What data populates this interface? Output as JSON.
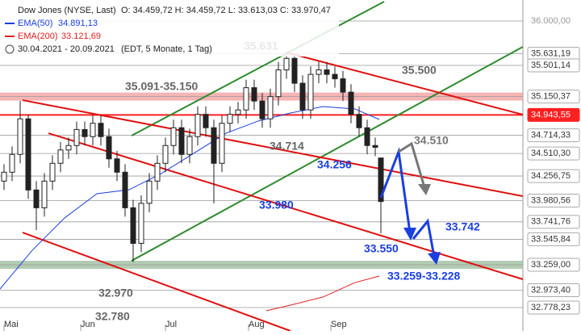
{
  "chart_data": {
    "type": "candlestick",
    "title": "Dow Jones (NYSE, Last)",
    "ohlc_text": "O: 34.459,72  H: 34.459,72  L: 33.613,03  C: 33.970,47",
    "period": "30.04.2021 - 20.09.2021",
    "period_note": "(EDT, 5 Monate, 1 Tag)",
    "up_color": "#ffffff",
    "down_color": "#222222",
    "xlim": [
      0,
      648
    ],
    "xticks": [
      {
        "value": 5,
        "label": "Mai"
      },
      {
        "value": 100,
        "label": "Jun"
      },
      {
        "value": 205,
        "label": "Jul"
      },
      {
        "value": 308,
        "label": "Aug"
      },
      {
        "value": 410,
        "label": "Sep"
      }
    ],
    "ylim": [
      32515,
      36236
    ],
    "yticks": [
      {
        "value": 36000,
        "label": "36.000,00"
      },
      {
        "value": 35631.19,
        "label": "35.631,19"
      },
      {
        "value": 35501.14,
        "label": "35.501,14"
      },
      {
        "value": 35150.37,
        "label": "35.150,37",
        "band": "#f4a3a3"
      },
      {
        "value": 34943.55,
        "label": "34.943,55",
        "color": "#ff2020"
      },
      {
        "value": 34714.33,
        "label": "34.714,33"
      },
      {
        "value": 34510.3,
        "label": "34.510,30"
      },
      {
        "value": 34256.75,
        "label": "34.256,75"
      },
      {
        "value": 33980.56,
        "label": "33.980,56"
      },
      {
        "value": 33741.76,
        "label": "33.741,76"
      },
      {
        "value": 33545.84,
        "label": "33.545,84"
      },
      {
        "value": 33259.0,
        "label": "33.259,00",
        "band": "#9fbf9f"
      },
      {
        "value": 32973.4,
        "label": "32.973,40"
      },
      {
        "value": 32778.23,
        "label": "32.778,23"
      }
    ],
    "x": [
      5,
      15,
      25,
      35,
      45,
      55,
      65,
      75,
      85,
      95,
      105,
      115,
      125,
      135,
      145,
      155,
      165,
      175,
      185,
      195,
      205,
      215,
      225,
      235,
      245,
      255,
      265,
      275,
      285,
      295,
      305,
      315,
      325,
      335,
      345,
      355,
      365,
      375,
      385,
      395,
      405,
      415,
      425,
      435,
      445,
      455,
      465,
      472
    ],
    "open": [
      34200,
      34300,
      34500,
      34900,
      34100,
      33900,
      34200,
      34400,
      34550,
      34600,
      34780,
      34700,
      34850,
      34700,
      34450,
      34300,
      33900,
      33500,
      33950,
      34200,
      34400,
      34600,
      34800,
      34500,
      34700,
      34950,
      34800,
      34400,
      34850,
      34950,
      35000,
      35250,
      35100,
      34900,
      35150,
      35450,
      35580,
      35300,
      35000,
      35400,
      35450,
      35400,
      35350,
      35200,
      34950,
      34800,
      34600,
      34459.72
    ],
    "high": [
      34390,
      34590,
      35100,
      34950,
      34200,
      34290,
      34490,
      34640,
      34690,
      34870,
      34870,
      34940,
      34940,
      34790,
      34540,
      34390,
      33990,
      34040,
      34290,
      34490,
      34690,
      34890,
      34890,
      34790,
      35040,
      35040,
      34890,
      34940,
      35040,
      35090,
      35340,
      35340,
      35190,
      35240,
      35540,
      35631,
      35600,
      35390,
      35490,
      35540,
      35540,
      35490,
      35440,
      35290,
      35040,
      34890,
      34690,
      34459.72
    ],
    "low": [
      34100,
      34200,
      34400,
      34000,
      33650,
      33800,
      34100,
      34300,
      34450,
      34500,
      34600,
      34600,
      34600,
      34350,
      34200,
      33800,
      33290,
      33400,
      33850,
      34100,
      34300,
      34500,
      34400,
      34400,
      34600,
      34700,
      33950,
      34300,
      34750,
      34850,
      34900,
      35000,
      34800,
      34800,
      35050,
      35350,
      35200,
      34900,
      34900,
      35300,
      35300,
      35250,
      35100,
      34850,
      34700,
      34500,
      34480,
      33613.03
    ],
    "close": [
      34300,
      34500,
      34900,
      34100,
      33900,
      34200,
      34400,
      34550,
      34600,
      34780,
      34700,
      34850,
      34700,
      34450,
      34300,
      33900,
      33500,
      33950,
      34200,
      34400,
      34600,
      34800,
      34500,
      34700,
      34950,
      34800,
      34400,
      34850,
      34950,
      35000,
      35250,
      35100,
      34900,
      35150,
      35450,
      35580,
      35300,
      35000,
      35400,
      35450,
      35400,
      35350,
      35200,
      34950,
      34800,
      34600,
      34580,
      33970.47
    ],
    "series": [
      {
        "name": "EMA(50)",
        "value_text": "34.891,13",
        "color": "#1a3fe0",
        "x": [
          0,
          40,
          80,
          120,
          160,
          200,
          240,
          280,
          320,
          360,
          400,
          440,
          470
        ],
        "values": [
          32987,
          33422,
          33785,
          34058,
          34103,
          34285,
          34512,
          34738,
          34875,
          34965,
          35038,
          35011,
          34893
        ]
      },
      {
        "name": "EMA(200)",
        "value_text": "33.121,69",
        "color": "#e02020",
        "x": [
          330,
          360,
          400,
          440,
          470
        ],
        "values": [
          32742,
          32805,
          32896,
          33059,
          33132
        ]
      }
    ],
    "trendlines": [
      {
        "color": "#2e8b2e",
        "x": [
          163,
          476
        ],
        "values": [
          34711,
          36218
        ]
      },
      {
        "color": "#2e8b2e",
        "x": [
          163,
          648
        ],
        "values": [
          33304,
          35710
        ]
      },
      {
        "color": "#e01010",
        "x": [
          28,
          648
        ],
        "values": [
          35110,
          34030
        ]
      },
      {
        "color": "#e01010",
        "x": [
          60,
          648
        ],
        "values": [
          34738,
          33096
        ]
      },
      {
        "color": "#e01010",
        "x": [
          355,
          648
        ],
        "values": [
          35646,
          34947
        ]
      },
      {
        "color": "#e01010",
        "x": [
          28,
          360
        ],
        "values": [
          33622,
          32515
        ]
      }
    ],
    "annotations": [
      {
        "text": "35.631",
        "color": "#666666"
      },
      {
        "text": "35.500",
        "color": "#666666"
      },
      {
        "text": "35.091-35.150",
        "color": "#666666"
      },
      {
        "text": "34.714",
        "color": "#666666"
      },
      {
        "text": "34.510",
        "color": "#777777"
      },
      {
        "text": "34.256",
        "color": "#1a3fe0"
      },
      {
        "text": "33.980",
        "color": "#1a3fe0"
      },
      {
        "text": "33.742",
        "color": "#1a3fe0"
      },
      {
        "text": "33.550",
        "color": "#1a3fe0"
      },
      {
        "text": "33.259-33.228",
        "color": "#1a3fe0"
      },
      {
        "text": "32.970",
        "color": "#666666"
      },
      {
        "text": "32.780",
        "color": "#666666"
      }
    ]
  }
}
